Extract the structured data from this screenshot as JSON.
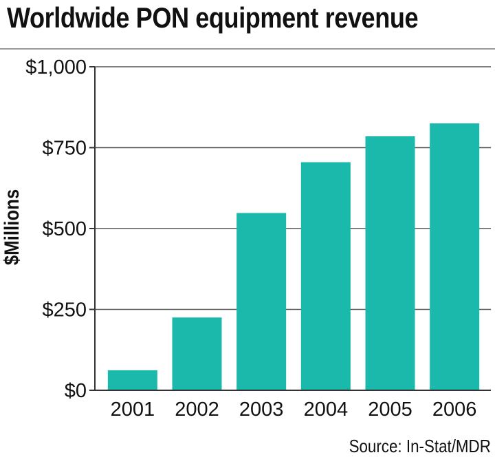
{
  "title": "Worldwide PON equipment revenue",
  "source": "Source: In-Stat/MDR",
  "colors": {
    "bar": "#1ab9ac",
    "grid": "#555555",
    "axis": "#333333",
    "text": "#111111"
  },
  "chart_data": {
    "type": "bar",
    "title": "Worldwide PON equipment revenue",
    "xlabel": "",
    "ylabel": "$Millions",
    "categories": [
      "2001",
      "2002",
      "2003",
      "2004",
      "2005",
      "2006"
    ],
    "values": [
      62,
      225,
      548,
      705,
      785,
      825
    ],
    "ylim": [
      0,
      1000
    ],
    "yticks": [
      0,
      250,
      500,
      750,
      1000
    ],
    "ytick_labels": [
      "$0",
      "$250",
      "$500",
      "$750",
      "$1,000"
    ],
    "grid": true,
    "legend": "none"
  }
}
